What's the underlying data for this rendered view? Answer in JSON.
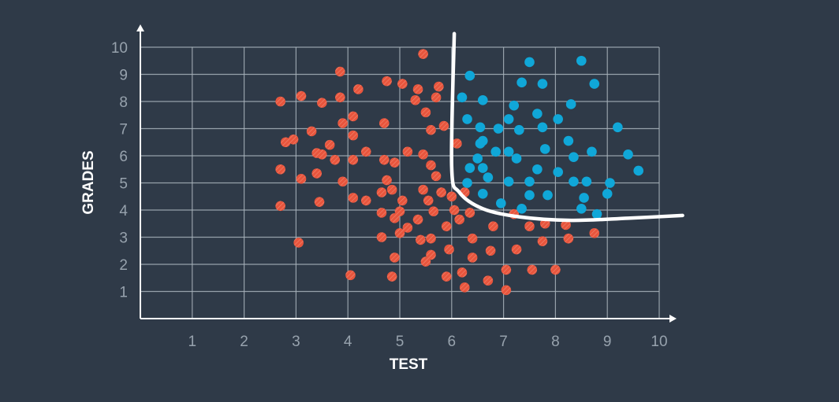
{
  "chart_data": {
    "type": "scatter",
    "xlabel": "TEST",
    "ylabel": "GRADES",
    "xlim": [
      0,
      10
    ],
    "ylim": [
      0,
      10
    ],
    "x_ticks": [
      "1",
      "2",
      "3",
      "4",
      "5",
      "6",
      "7",
      "8",
      "9",
      "10"
    ],
    "y_ticks": [
      "1",
      "2",
      "3",
      "4",
      "5",
      "6",
      "7",
      "8",
      "9",
      "10"
    ],
    "grid": true,
    "legend": "none",
    "colors": {
      "background": "#2f3a48",
      "red": "#e8553d",
      "blue": "#10a7d8",
      "boundary": "#ffffff",
      "grid": "#a9b3bc"
    },
    "series": [
      {
        "color": "red",
        "points": [
          [
            2.7,
            8.0
          ],
          [
            3.1,
            8.2
          ],
          [
            3.5,
            7.95
          ],
          [
            3.85,
            8.15
          ],
          [
            3.85,
            9.1
          ],
          [
            4.2,
            8.45
          ],
          [
            4.75,
            8.75
          ],
          [
            5.05,
            8.65
          ],
          [
            5.35,
            8.45
          ],
          [
            5.45,
            9.75
          ],
          [
            5.75,
            8.55
          ],
          [
            5.3,
            8.05
          ],
          [
            5.7,
            8.15
          ],
          [
            5.5,
            7.6
          ],
          [
            2.8,
            6.5
          ],
          [
            2.95,
            6.6
          ],
          [
            3.3,
            6.9
          ],
          [
            3.4,
            6.1
          ],
          [
            3.65,
            6.4
          ],
          [
            3.9,
            7.2
          ],
          [
            4.1,
            7.45
          ],
          [
            4.1,
            6.75
          ],
          [
            4.35,
            6.15
          ],
          [
            4.7,
            7.2
          ],
          [
            5.15,
            6.15
          ],
          [
            5.45,
            6.05
          ],
          [
            5.6,
            6.95
          ],
          [
            5.85,
            7.1
          ],
          [
            6.1,
            6.45
          ],
          [
            2.7,
            5.5
          ],
          [
            3.1,
            5.15
          ],
          [
            3.4,
            5.35
          ],
          [
            3.75,
            5.85
          ],
          [
            3.5,
            6.05
          ],
          [
            3.9,
            5.05
          ],
          [
            4.1,
            5.85
          ],
          [
            4.1,
            4.45
          ],
          [
            4.35,
            4.35
          ],
          [
            4.65,
            4.65
          ],
          [
            4.75,
            5.1
          ],
          [
            4.85,
            4.75
          ],
          [
            4.9,
            5.75
          ],
          [
            5.05,
            4.35
          ],
          [
            5.45,
            4.75
          ],
          [
            5.55,
            4.35
          ],
          [
            5.6,
            5.65
          ],
          [
            5.7,
            5.25
          ],
          [
            5.8,
            4.65
          ],
          [
            6.0,
            4.5
          ],
          [
            6.25,
            4.65
          ],
          [
            4.7,
            5.85
          ],
          [
            2.7,
            4.15
          ],
          [
            3.45,
            4.3
          ],
          [
            4.65,
            3.9
          ],
          [
            4.9,
            3.7
          ],
          [
            5.0,
            3.95
          ],
          [
            5.35,
            3.65
          ],
          [
            5.65,
            3.95
          ],
          [
            5.9,
            3.4
          ],
          [
            6.05,
            4.0
          ],
          [
            6.35,
            3.9
          ],
          [
            6.15,
            3.65
          ],
          [
            6.8,
            3.4
          ],
          [
            7.2,
            3.85
          ],
          [
            7.5,
            3.4
          ],
          [
            7.8,
            3.5
          ],
          [
            8.2,
            3.45
          ],
          [
            3.05,
            2.8
          ],
          [
            4.65,
            3.0
          ],
          [
            4.9,
            2.25
          ],
          [
            5.0,
            3.15
          ],
          [
            5.15,
            3.35
          ],
          [
            5.4,
            2.9
          ],
          [
            5.6,
            2.95
          ],
          [
            5.6,
            2.35
          ],
          [
            5.95,
            2.55
          ],
          [
            6.4,
            2.95
          ],
          [
            6.4,
            2.25
          ],
          [
            6.75,
            2.5
          ],
          [
            7.25,
            2.55
          ],
          [
            7.75,
            2.85
          ],
          [
            8.25,
            2.95
          ],
          [
            8.75,
            3.15
          ],
          [
            4.05,
            1.6
          ],
          [
            4.85,
            1.55
          ],
          [
            5.5,
            2.1
          ],
          [
            5.9,
            1.55
          ],
          [
            6.2,
            1.7
          ],
          [
            6.25,
            1.15
          ],
          [
            6.7,
            1.4
          ],
          [
            7.05,
            1.8
          ],
          [
            7.05,
            1.05
          ],
          [
            7.55,
            1.8
          ],
          [
            8.0,
            1.8
          ]
        ]
      },
      {
        "color": "blue",
        "points": [
          [
            6.35,
            8.95
          ],
          [
            7.5,
            9.45
          ],
          [
            8.5,
            9.5
          ],
          [
            7.35,
            8.7
          ],
          [
            7.75,
            8.65
          ],
          [
            8.75,
            8.65
          ],
          [
            6.2,
            8.15
          ],
          [
            6.6,
            8.05
          ],
          [
            7.2,
            7.85
          ],
          [
            7.65,
            7.55
          ],
          [
            8.3,
            7.9
          ],
          [
            6.3,
            7.35
          ],
          [
            6.55,
            7.05
          ],
          [
            6.9,
            7.0
          ],
          [
            7.1,
            7.35
          ],
          [
            7.3,
            6.95
          ],
          [
            7.75,
            7.05
          ],
          [
            8.05,
            7.35
          ],
          [
            9.2,
            7.05
          ],
          [
            6.55,
            6.45
          ],
          [
            6.6,
            6.55
          ],
          [
            6.85,
            6.15
          ],
          [
            7.1,
            6.15
          ],
          [
            7.25,
            5.9
          ],
          [
            7.8,
            6.25
          ],
          [
            8.25,
            6.55
          ],
          [
            8.35,
            5.95
          ],
          [
            8.7,
            6.15
          ],
          [
            9.4,
            6.05
          ],
          [
            6.35,
            5.55
          ],
          [
            6.5,
            5.9
          ],
          [
            6.6,
            5.55
          ],
          [
            6.7,
            5.2
          ],
          [
            7.1,
            5.05
          ],
          [
            7.5,
            5.05
          ],
          [
            7.65,
            5.5
          ],
          [
            8.05,
            5.4
          ],
          [
            8.35,
            5.05
          ],
          [
            8.6,
            5.05
          ],
          [
            9.05,
            5.0
          ],
          [
            9.6,
            5.45
          ],
          [
            6.3,
            5.0
          ],
          [
            6.6,
            4.6
          ],
          [
            6.95,
            4.25
          ],
          [
            7.35,
            4.05
          ],
          [
            7.5,
            4.55
          ],
          [
            7.85,
            4.55
          ],
          [
            8.55,
            4.45
          ],
          [
            8.5,
            4.05
          ],
          [
            8.8,
            3.85
          ],
          [
            9.0,
            4.6
          ]
        ]
      }
    ],
    "boundary_curve": [
      [
        6.05,
        10.5
      ],
      [
        6.0,
        5.6
      ],
      [
        6.15,
        4.65
      ],
      [
        6.6,
        4.05
      ],
      [
        7.3,
        3.75
      ],
      [
        8.3,
        3.62
      ],
      [
        9.4,
        3.7
      ],
      [
        10.45,
        3.8
      ]
    ]
  }
}
